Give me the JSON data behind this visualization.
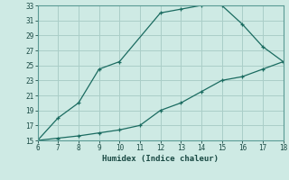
{
  "title": "",
  "xlabel": "Humidex (Indice chaleur)",
  "ylabel": "",
  "background_color": "#ceeae4",
  "grid_color": "#aacec8",
  "line_color": "#1a6b60",
  "xlim": [
    6,
    18
  ],
  "ylim": [
    15,
    33
  ],
  "xticks": [
    6,
    7,
    8,
    9,
    10,
    11,
    12,
    13,
    14,
    15,
    16,
    17,
    18
  ],
  "yticks": [
    15,
    17,
    19,
    21,
    23,
    25,
    27,
    29,
    31,
    33
  ],
  "upper_x": [
    6,
    7,
    8,
    9,
    10,
    12,
    13,
    14,
    15,
    16,
    17,
    18
  ],
  "upper_y": [
    15,
    18,
    20,
    24.5,
    25.5,
    32,
    32.5,
    33,
    33,
    30.5,
    27.5,
    25.5
  ],
  "lower_x": [
    6,
    7,
    8,
    9,
    10,
    11,
    12,
    13,
    14,
    15,
    16,
    17,
    18
  ],
  "lower_y": [
    15,
    15.3,
    15.6,
    16.0,
    16.4,
    17.0,
    19.0,
    20.0,
    21.5,
    23.0,
    23.5,
    24.5,
    25.5
  ]
}
